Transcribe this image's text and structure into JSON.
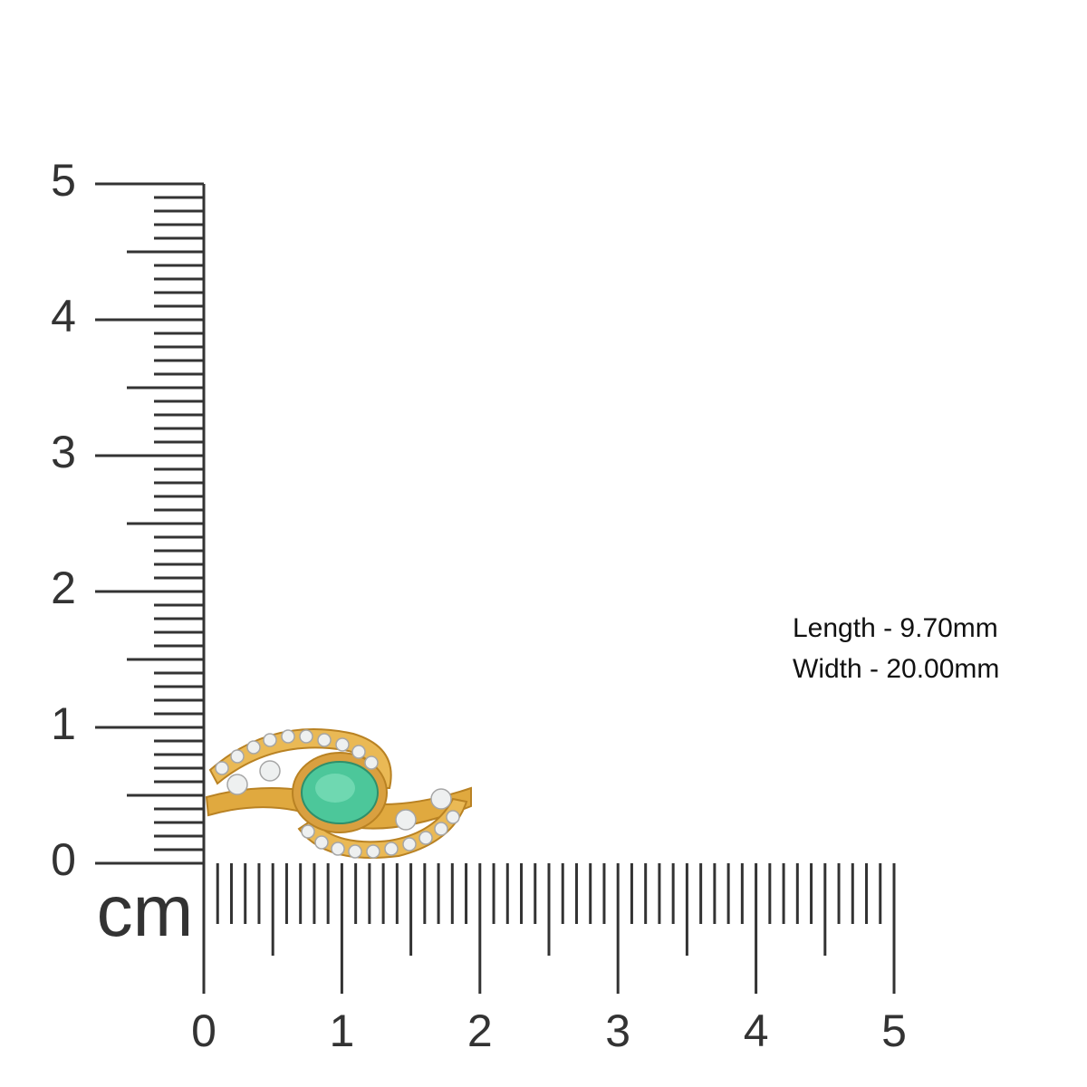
{
  "vertical_ruler": {
    "labels": [
      0,
      1,
      2,
      3,
      4,
      5
    ]
  },
  "horizontal_ruler": {
    "labels": [
      0,
      1,
      2,
      3,
      4,
      5
    ]
  },
  "unit": "cm",
  "dimensions": [
    "Length - 9.70mm",
    "Width - 20.00mm"
  ]
}
